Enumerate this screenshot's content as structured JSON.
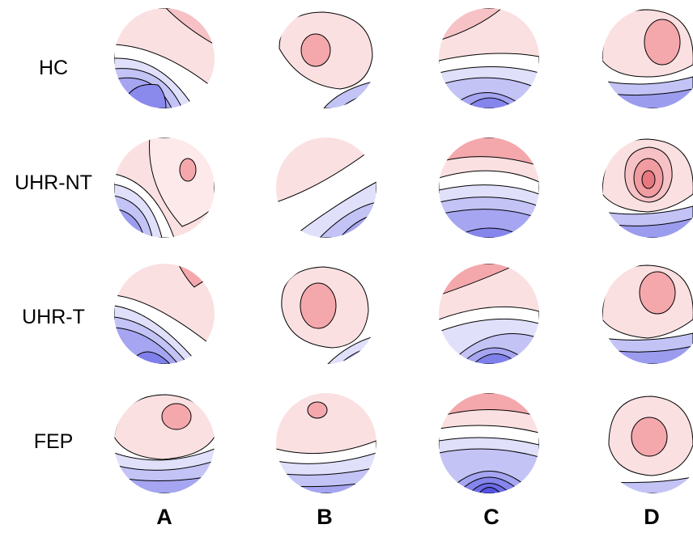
{
  "rows": [
    {
      "label": "HC"
    },
    {
      "label": "UHR-NT"
    },
    {
      "label": "UHR-T"
    },
    {
      "label": "FEP"
    }
  ],
  "columns": [
    {
      "label": "A"
    },
    {
      "label": "B"
    },
    {
      "label": "C"
    },
    {
      "label": "D"
    }
  ],
  "colors": {
    "positive": "#f2a0a4",
    "neutral": "#ffffff",
    "negative": "#7070ea",
    "contour": "#000000"
  }
}
